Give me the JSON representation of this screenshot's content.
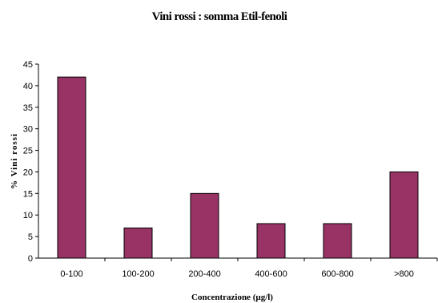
{
  "chart_data": {
    "type": "bar",
    "title": "Vini rossi : somma Etil-fenoli",
    "xlabel": "Concentrazione (µg/l)",
    "ylabel": "% Vini rossi",
    "categories": [
      "0-100",
      "100-200",
      "200-400",
      "400-600",
      "600-800",
      ">800"
    ],
    "values": [
      42,
      7,
      15,
      8,
      8,
      20
    ],
    "ylim": [
      0,
      45
    ],
    "yticks": [
      0,
      5,
      10,
      15,
      20,
      25,
      30,
      35,
      40,
      45
    ],
    "grid": false,
    "legend": "none",
    "colors": {
      "bar_fill": "#993366",
      "bar_stroke": "#000000",
      "axis": "#000000"
    }
  }
}
